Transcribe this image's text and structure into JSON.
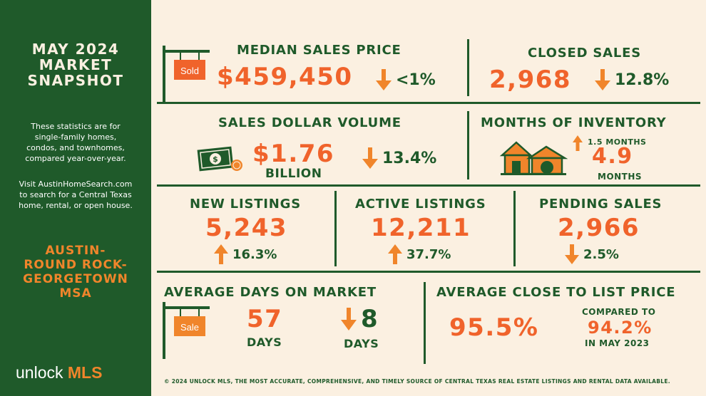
{
  "sidebar": {
    "title_line1": "MAY 2024",
    "title_line2": "MARKET",
    "title_line3": "SNAPSHOT",
    "para1_line1": "These statistics are for",
    "para1_line2": "single-family homes,",
    "para1_line3": "condos, and townhomes,",
    "para1_line4": "compared year-over-year.",
    "para2_line1": "Visit AustinHomeSearch.com",
    "para2_line2": "to search for a Central Texas",
    "para2_line3": "home, rental, or open house.",
    "region_line1": "AUSTIN-",
    "region_line2": "ROUND ROCK-",
    "region_line3": "GEORGETOWN",
    "region_line4": "MSA",
    "logo_word1": "unlock",
    "logo_word2": "MLS"
  },
  "colors": {
    "green": "#1f5a2a",
    "orange": "#f0632b",
    "accent": "#f0852b",
    "background": "#fbf0e1"
  },
  "median_price": {
    "heading": "MEDIAN SALES PRICE",
    "value": "$459,450",
    "change": "<1%",
    "direction": "down",
    "sign_label": "Sold"
  },
  "closed_sales": {
    "heading": "CLOSED SALES",
    "value": "2,968",
    "change": "12.8%",
    "direction": "down"
  },
  "dollar_volume": {
    "heading": "SALES DOLLAR VOLUME",
    "value": "$1.76",
    "unit": "BILLION",
    "change": "13.4%",
    "direction": "down",
    "icon": "money-icon"
  },
  "inventory": {
    "heading": "MONTHS OF INVENTORY",
    "change": "1.5 MONTHS",
    "direction": "up",
    "value": "4.9",
    "unit": "MONTHS",
    "icon": "house-icon"
  },
  "new_listings": {
    "heading": "NEW LISTINGS",
    "value": "5,243",
    "change": "16.3%",
    "direction": "up"
  },
  "active_listings": {
    "heading": "ACTIVE LISTINGS",
    "value": "12,211",
    "change": "37.7%",
    "direction": "up"
  },
  "pending_sales": {
    "heading": "PENDING SALES",
    "value": "2,966",
    "change": "2.5%",
    "direction": "down"
  },
  "days_on_market": {
    "heading": "AVERAGE DAYS ON MARKET",
    "value": "57",
    "unit": "DAYS",
    "change": "8",
    "change_unit": "DAYS",
    "direction": "down",
    "sign_label": "Sale"
  },
  "close_to_list": {
    "heading": "AVERAGE CLOSE TO LIST PRICE",
    "value": "95.5%",
    "compared_label": "COMPARED TO",
    "compared_value": "94.2%",
    "compared_period": "IN MAY 2023"
  },
  "footer": "© 2024 UNLOCK MLS, THE MOST ACCURATE, COMPREHENSIVE, AND TIMELY SOURCE  OF CENTRAL TEXAS REAL ESTATE LISTINGS AND RENTAL DATA AVAILABLE."
}
